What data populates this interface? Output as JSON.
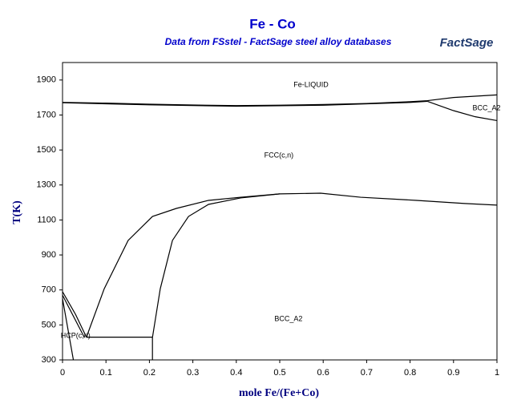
{
  "chart_data": {
    "type": "line",
    "title": "Fe - Co",
    "subtitle": "Data from FSstel - FactSage steel alloy databases",
    "logo": "FactSage",
    "xlabel": "mole Fe/(Fe+Co)",
    "ylabel": "T(K)",
    "xlim": [
      0,
      1
    ],
    "ylim": [
      300,
      2000
    ],
    "xticks": [
      0,
      0.1,
      0.2,
      0.3,
      0.4,
      0.5,
      0.6,
      0.7,
      0.8,
      0.9,
      1
    ],
    "yticks": [
      300,
      500,
      700,
      900,
      1100,
      1300,
      1500,
      1700,
      1900
    ],
    "color": "#000000",
    "series": [
      {
        "x": [
          0,
          0.1,
          0.2,
          0.3,
          0.4,
          0.5,
          0.6,
          0.7,
          0.8,
          0.84,
          0.9,
          1
        ],
        "values": [
          1772,
          1768,
          1762,
          1757,
          1754,
          1756,
          1760,
          1766,
          1776,
          1782,
          1800,
          1815
        ]
      },
      {
        "x": [
          0,
          0.2,
          0.4,
          0.6,
          0.8,
          0.84
        ],
        "values": [
          1770,
          1758,
          1750,
          1756,
          1772,
          1778
        ]
      },
      {
        "x": [
          0.84,
          0.9,
          0.95,
          1
        ],
        "values": [
          1778,
          1725,
          1690,
          1668
        ]
      },
      {
        "x": [
          0.055,
          0.096,
          0.151,
          0.207,
          0.262,
          0.336,
          0.41,
          0.5,
          0.594,
          0.686,
          0.815,
          0.926,
          1
        ],
        "values": [
          430,
          707,
          983,
          1120,
          1166,
          1212,
          1230,
          1249,
          1253,
          1230,
          1212,
          1194,
          1185
        ]
      },
      {
        "x": [
          0.207,
          0.207,
          0.225,
          0.253,
          0.29,
          0.336,
          0.41,
          0.5
        ],
        "values": [
          300,
          428,
          707,
          983,
          1120,
          1189,
          1226,
          1249
        ]
      },
      {
        "x": [
          0.055,
          0.207
        ],
        "values": [
          430,
          430
        ]
      },
      {
        "x": [
          0,
          0.03,
          0.055
        ],
        "values": [
          690,
          560,
          430
        ]
      },
      {
        "x": [
          0,
          0.05
        ],
        "values": [
          670,
          430
        ]
      },
      {
        "x": [
          0,
          0.025
        ],
        "values": [
          650,
          300
        ]
      }
    ],
    "annotations": [
      {
        "text": "Fe-LIQUID",
        "x": 0.572,
        "y": 1872
      },
      {
        "text": "FCC(c,n)",
        "x": 0.498,
        "y": 1469
      },
      {
        "text": "BCC_A2",
        "x": 0.976,
        "y": 1739
      },
      {
        "text": "BCC_A2",
        "x": 0.52,
        "y": 533
      },
      {
        "text": "HCP(c,n)",
        "x": 0.03,
        "y": 437
      }
    ]
  }
}
